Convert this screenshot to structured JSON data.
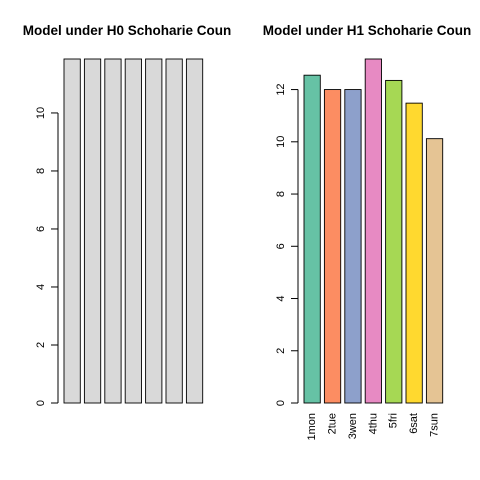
{
  "chart_data": [
    {
      "type": "bar",
      "title": "Model under H0 Schoharie Coun",
      "categories": [
        "1mon",
        "2tue",
        "3wen",
        "4thu",
        "5fri",
        "6sat",
        "7sun"
      ],
      "show_category_labels": false,
      "values": [
        11.86,
        11.86,
        11.86,
        11.86,
        11.86,
        11.86,
        11.86
      ],
      "bar_colors": [
        "#d9d9d9",
        "#d9d9d9",
        "#d9d9d9",
        "#d9d9d9",
        "#d9d9d9",
        "#d9d9d9",
        "#d9d9d9"
      ],
      "yticks": [
        0,
        2,
        4,
        6,
        8,
        10
      ],
      "ylim": [
        0,
        11.86
      ],
      "xlabel": "",
      "ylabel": "",
      "grid": false,
      "legend": "none"
    },
    {
      "type": "bar",
      "title": "Model under H1 Schoharie Coun",
      "categories": [
        "1mon",
        "2tue",
        "3wen",
        "4thu",
        "5fri",
        "6sat",
        "7sun"
      ],
      "show_category_labels": true,
      "values": [
        12.55,
        12.0,
        12.0,
        13.17,
        12.35,
        11.48,
        10.12
      ],
      "bar_colors": [
        "#66c2a5",
        "#fc8d62",
        "#8da0cb",
        "#e78ac3",
        "#a6d854",
        "#ffd92f",
        "#e5c494"
      ],
      "yticks": [
        0,
        2,
        4,
        6,
        8,
        10,
        12
      ],
      "ylim": [
        0,
        13.17
      ],
      "xlabel": "",
      "ylabel": "",
      "grid": false,
      "legend": "none"
    }
  ]
}
